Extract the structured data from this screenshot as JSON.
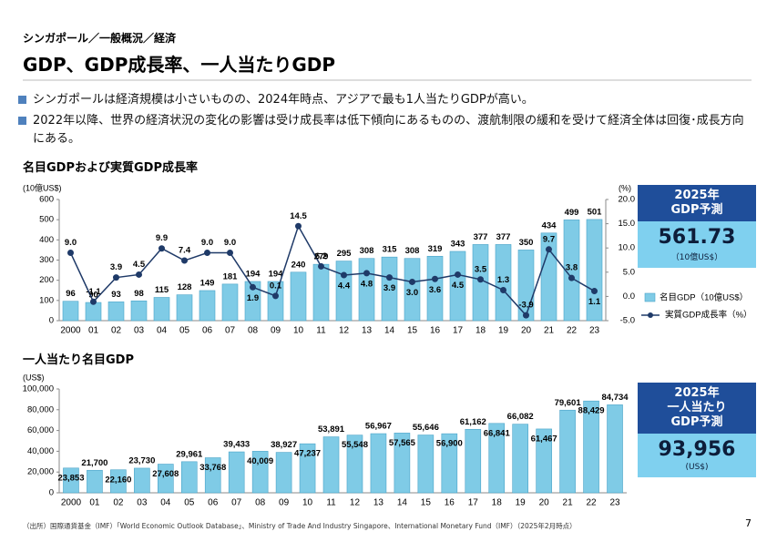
{
  "header": {
    "breadcrumb": "シンガポール／一般概況／経済",
    "title": "GDP、GDP成長率、一人当たりGDP"
  },
  "bullets": [
    "シンガポールは経済規模は小さいものの、2024年時点、アジアで最も1人当たりGDPが高い。",
    "2022年以降、世界の経済状況の変化の影響は受け成長率は低下傾向にあるものの、渡航制限の緩和を受けて経済全体は回復･成長方向にある。"
  ],
  "chart_data": [
    {
      "type": "combo",
      "title": "名目GDPおよび実質GDP成長率",
      "y_axis_label": "(10億US$)",
      "y2_axis_label": "(%)",
      "categories": [
        "2000",
        "01",
        "02",
        "03",
        "04",
        "05",
        "06",
        "07",
        "08",
        "09",
        "10",
        "11",
        "12",
        "13",
        "14",
        "15",
        "16",
        "17",
        "18",
        "19",
        "20",
        "21",
        "22",
        "23"
      ],
      "series": [
        {
          "name": "名目GDP（10億US$）",
          "color": "#7fcbe6",
          "values": [
            96,
            90,
            93,
            98,
            115,
            128,
            149,
            181,
            194,
            194,
            240,
            279,
            295,
            308,
            315,
            308,
            319,
            343,
            377,
            377,
            350,
            434,
            499,
            501
          ]
        },
        {
          "name": "実質GDP成長率（%）",
          "color": "#1f3a68",
          "axis": "y2",
          "values": [
            9,
            -1.1,
            3.9,
            4.5,
            9.9,
            7.4,
            9,
            9,
            1.9,
            0.1,
            14.5,
            6.2,
            4.4,
            4.8,
            3.9,
            3,
            3.6,
            4.5,
            3.5,
            1.3,
            -3.9,
            9.7,
            3.8,
            1.1
          ],
          "value_labels": [
            "9.0",
            "-1.1",
            "3.9",
            "4.5",
            "9.9",
            "7.4",
            "9.0",
            "9.0",
            "1.9",
            "0.1",
            "14.5",
            "6.2",
            "4.4",
            "4.8",
            "3.9",
            "3.0",
            "3.6",
            "4.5",
            "3.5",
            "1.3",
            "-3.9",
            "9.7",
            "3.8",
            "1.1"
          ]
        }
      ],
      "ylim": [
        0,
        600
      ],
      "yticks": [
        0,
        {
          "value": 100,
          "label": "100"
        },
        200,
        300,
        400,
        500,
        600
      ],
      "y2lim": [
        -5,
        20
      ],
      "y2ticks": [
        {
          "value": -5,
          "label": "-5.0"
        },
        {
          "value": 0,
          "label": "0.0"
        },
        {
          "value": 5,
          "label": "5.0"
        },
        {
          "value": 10,
          "label": "10.0"
        },
        {
          "value": 15,
          "label": "15.0"
        },
        {
          "value": 20,
          "label": "20.0"
        }
      ],
      "legend": "right",
      "callout": {
        "lines": [
          "2025年",
          "GDP予測"
        ],
        "value": "561.73",
        "unit": "（10億US$）"
      }
    },
    {
      "type": "bar",
      "title": "一人当たり名目GDP",
      "y_axis_label": "(US$)",
      "categories": [
        "2000",
        "01",
        "02",
        "03",
        "04",
        "05",
        "06",
        "07",
        "08",
        "09",
        "10",
        "11",
        "12",
        "13",
        "14",
        "15",
        "16",
        "17",
        "18",
        "19",
        "20",
        "21",
        "22",
        "23"
      ],
      "color": "#7fcbe6",
      "values": [
        23853,
        21700,
        22160,
        23730,
        27608,
        29961,
        33768,
        39433,
        40009,
        38927,
        47237,
        53891,
        55548,
        56967,
        57565,
        55646,
        56900,
        61162,
        66841,
        66082,
        61467,
        79601,
        88429,
        84734
      ],
      "value_labels": [
        "23,853",
        "21,700",
        "22,160",
        "23,730",
        "27,608",
        "29,961",
        "33,768",
        "39,433",
        "40,009",
        "38,927",
        "47,237",
        "53,891",
        "55,548",
        "56,967",
        "57,565",
        "55,646",
        "56,900",
        "61,162",
        "66,841",
        "66,082",
        "61,467",
        "79,601",
        "88,429",
        "84,734"
      ],
      "ylim": [
        0,
        100000
      ],
      "yticks": [
        0,
        {
          "value": 20000,
          "label": "20,000"
        },
        {
          "value": 40000,
          "label": "40,000"
        },
        {
          "value": 60000,
          "label": "60,000"
        },
        {
          "value": 80000,
          "label": "80,000"
        },
        {
          "value": 100000,
          "label": "100,000"
        }
      ],
      "callout": {
        "lines": [
          "2025年",
          "一人当たり",
          "GDP予測"
        ],
        "value": "93,956",
        "unit": "(US$)"
      }
    }
  ],
  "footnote": "（出所）国際通貨基金（IMF）「World Economic Outlook Database」、Ministry of Trade And Industry Singapore、International Monetary Fund（IMF）（2025年2月時点）",
  "page_number": "7"
}
